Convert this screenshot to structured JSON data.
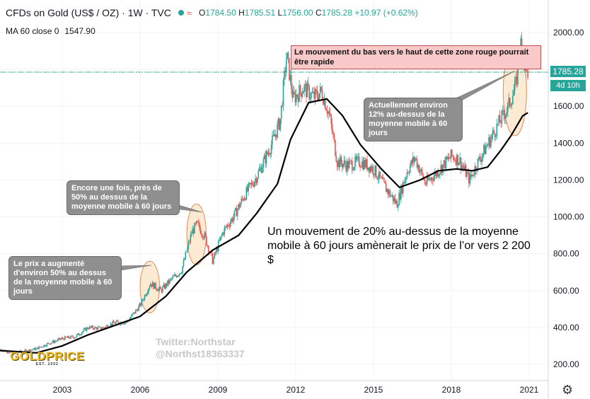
{
  "header": {
    "title": "CFDs on Gold (US$ / OZ) · 1W · TVC",
    "ohlc": [
      {
        "k": "O",
        "v": "1784.50"
      },
      {
        "k": "H",
        "v": "1785.51"
      },
      {
        "k": "L",
        "v": "1756.00"
      },
      {
        "k": "C",
        "v": "1785.28"
      }
    ],
    "change": "+10.97 (+0.62%)"
  },
  "ma": {
    "label": "MA 60 close 0",
    "value": "1547.90"
  },
  "price_tag": "1785.28",
  "time_tag": "4d 10h",
  "annotations": {
    "red_zone": "Le mouvement du bas vers le haut de cette zone rouge pourrait être rapide",
    "note_current": "Actuellement environ 12% au-dessus de la moyenne mobile à 60 jours",
    "note_2008": "Encore une fois, près de 50% au dessus de la moyenne mobile à 60 jours",
    "note_2006": "Le prix a augmenté d'environ 50% au dessus de la moyenne mobile à 60 jours",
    "main_text": "Un mouvement de 20% au-dessus de la moyenne mobile à 60 jours amènerait le prix de l’or vers 2 200 $"
  },
  "watermark": {
    "line1": "Twitter:Northstar",
    "line2": "@Northst18363337"
  },
  "logo": {
    "name": "GOLDPRICE",
    "sub": "EST. 2002"
  },
  "colors": {
    "up": "#26a69a",
    "down": "#ef5350",
    "ma": "#000000",
    "zone": "#f9c8c8",
    "ellipse": "#fbe3c4"
  },
  "chart_data": {
    "type": "line",
    "ylim": [
      140,
      2100
    ],
    "xlim": [
      2000.6,
      2021.6
    ],
    "y_ticks": [
      200,
      400,
      600,
      800,
      1000,
      1200,
      1400,
      1600,
      1800,
      2000
    ],
    "y_tick_labels": [
      "200.00",
      "400.00",
      "600.00",
      "800.00",
      "1000.00",
      "1200.00",
      "1400.00",
      "1600.00",
      "1800.00",
      "2000.00"
    ],
    "x_ticks": [
      2003,
      2006,
      2009,
      2012,
      2015,
      2018,
      2021
    ],
    "series": [
      {
        "name": "",
        "style": "candles",
        "x": [
          2000.6,
          2001.0,
          2001.5,
          2002.0,
          2002.5,
          2003.0,
          2003.5,
          2004.0,
          2004.5,
          2005.0,
          2005.5,
          2006.0,
          2006.4,
          2006.8,
          2007.2,
          2007.6,
          2008.0,
          2008.2,
          2008.5,
          2008.8,
          2009.2,
          2009.6,
          2010.0,
          2010.5,
          2011.0,
          2011.4,
          2011.65,
          2011.9,
          2012.3,
          2012.7,
          2013.0,
          2013.3,
          2013.6,
          2014.0,
          2014.5,
          2015.0,
          2015.5,
          2015.9,
          2016.3,
          2016.6,
          2017.0,
          2017.5,
          2018.0,
          2018.3,
          2018.7,
          2019.0,
          2019.5,
          2019.8,
          2020.2,
          2020.5,
          2020.65,
          2020.9
        ],
        "y": [
          280,
          265,
          270,
          285,
          315,
          340,
          350,
          400,
          395,
          425,
          430,
          520,
          640,
          600,
          660,
          710,
          920,
          960,
          890,
          760,
          920,
          1000,
          1110,
          1220,
          1370,
          1520,
          1880,
          1640,
          1700,
          1650,
          1680,
          1550,
          1300,
          1280,
          1300,
          1260,
          1150,
          1070,
          1250,
          1320,
          1180,
          1250,
          1330,
          1310,
          1200,
          1290,
          1420,
          1500,
          1600,
          1720,
          1950,
          1785
        ]
      },
      {
        "name": "",
        "style": "line",
        "x": [
          2000.6,
          2002.0,
          2003.0,
          2004.0,
          2005.0,
          2006.0,
          2007.0,
          2007.8,
          2008.8,
          2009.8,
          2010.5,
          2011.3,
          2011.8,
          2012.5,
          2013.2,
          2013.8,
          2014.5,
          2015.3,
          2016.0,
          2016.8,
          2017.5,
          2018.2,
          2018.8,
          2019.4,
          2019.9,
          2020.3,
          2020.75,
          2020.95
        ],
        "y": [
          275,
          262,
          300,
          360,
          410,
          460,
          570,
          700,
          820,
          900,
          1020,
          1180,
          1420,
          1620,
          1640,
          1550,
          1390,
          1260,
          1160,
          1200,
          1250,
          1260,
          1250,
          1270,
          1360,
          1440,
          1548,
          1565
        ]
      }
    ]
  }
}
